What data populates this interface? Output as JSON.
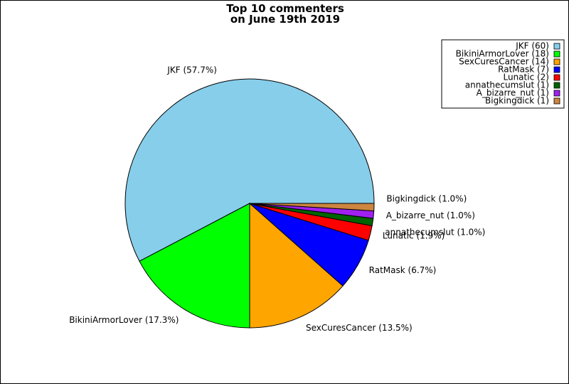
{
  "chart_data": {
    "type": "pie",
    "title_lines": [
      "Top 10 commenters",
      "on June 19th 2019"
    ],
    "slices": [
      {
        "name": "JKF",
        "value": 60,
        "percent_label": "JKF (57.7%)",
        "legend_label": "JKF (60)",
        "color": "#87CEEB"
      },
      {
        "name": "BikiniArmorLover",
        "value": 18,
        "percent_label": "BikiniArmorLover (17.3%)",
        "legend_label": "BikiniArmorLover (18)",
        "color": "#00FF00"
      },
      {
        "name": "SexCuresCancer",
        "value": 14,
        "percent_label": "SexCuresCancer (13.5%)",
        "legend_label": "SexCuresCancer (14)",
        "color": "#FFA500"
      },
      {
        "name": "RatMask",
        "value": 7,
        "percent_label": "RatMask (6.7%)",
        "legend_label": "RatMask (7)",
        "color": "#0000FF"
      },
      {
        "name": "Lunatic",
        "value": 2,
        "percent_label": "Lunatic (1.9%)",
        "legend_label": "Lunatic (2)",
        "color": "#FF0000"
      },
      {
        "name": "annathecumslut",
        "value": 1,
        "percent_label": "annathecumslut (1.0%)",
        "legend_label": "annathecumslut (1)",
        "color": "#006400"
      },
      {
        "name": "A_bizarre_nut",
        "value": 1,
        "percent_label": "A_bizarre_nut (1.0%)",
        "legend_label": "A_bizarre_nut (1)",
        "color": "#A020F0"
      },
      {
        "name": "Bigkingdick",
        "value": 1,
        "percent_label": "Bigkingdick (1.0%)",
        "legend_label": "Bigkingdick (1)",
        "color": "#CD853F"
      }
    ],
    "start_angle_deg": 0,
    "direction": "counterclockwise",
    "legend_position": "top-right"
  }
}
